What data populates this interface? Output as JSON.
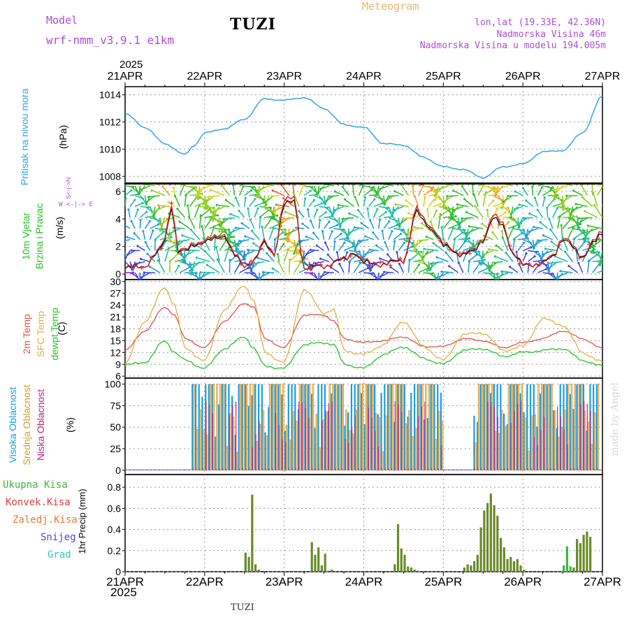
{
  "header": {
    "model_label": "Model",
    "model_name": "wrf-nmm_v3.9.1 e1km",
    "station": "TUZI",
    "meteogram": "Meteogram",
    "lonlat": "lon,lat (19.33E, 42.36N)",
    "altitude": "Nadmorska Visina 46m",
    "model_altitude": "Nadmorska Visina u modelu 194.005m",
    "watermark": "made by Angel",
    "footer_station": "TUZI"
  },
  "colors": {
    "pressure": "#2fa6e6",
    "t2m": "#e6504a",
    "sfc": "#e0b040",
    "dewpt": "#22c422",
    "high_cloud": "#1a9ce6",
    "mid_cloud": "#d89a30",
    "low_cloud": "#c81e78",
    "precip_total": "#3cb83c",
    "precip_conv": "#e63c3c",
    "precip_zaledj": "#f07830",
    "snow": "#4848e6",
    "hail": "#28c8c8",
    "title_purple": "#b04cd8"
  },
  "time_axis": {
    "year": "2025",
    "ticks": [
      "21APR",
      "22APR",
      "23APR",
      "24APR",
      "25APR",
      "26APR",
      "27APR"
    ]
  },
  "panel_labels": {
    "pressure": [
      "Pritisak na nivou mora",
      "(hPa)"
    ],
    "wind": [
      "10m Vjetar",
      "Brzina i Pravac",
      "(m/s)"
    ],
    "wind_compass": "W  <-|->  E",
    "wind_compass_ns": "S<-|->N",
    "temp": [
      "2m Temp",
      "SFC Temp",
      "dewpt Temp",
      "(C)"
    ],
    "cloud": [
      "Visoka Oblacnost",
      "Srednja Oblacnost",
      "Niska Oblacnost",
      "(%)"
    ],
    "precip_legend": [
      "Ukupna Kisa",
      "Konvek.Kisa",
      "Zaledj.Kisa",
      "Snijeg",
      "Grad"
    ],
    "precip_unit": "1hr Precip (mm)"
  },
  "chart_data": [
    {
      "type": "line",
      "name": "pressure",
      "ylabel": "(hPa)",
      "ylim": [
        1007.5,
        1014.6
      ],
      "yticks": [
        1008,
        1010,
        1012,
        1014
      ],
      "x_hours": [
        0,
        6,
        12,
        18,
        21,
        24,
        30,
        36,
        42,
        48,
        54,
        60,
        66,
        72,
        78,
        84,
        90,
        96,
        102,
        108,
        114,
        120,
        126,
        132,
        138,
        144
      ],
      "values": [
        1012.6,
        1011.6,
        1010.4,
        1009.6,
        1010.3,
        1011.2,
        1011.5,
        1012.2,
        1013.7,
        1013.6,
        1013.8,
        1013.0,
        1011.8,
        1011.6,
        1010.4,
        1010.3,
        1009.4,
        1008.7,
        1008.5,
        1007.9,
        1008.7,
        1008.9,
        1009.8,
        1009.9,
        1011.2,
        1013.9
      ],
      "grid": true
    },
    {
      "type": "line",
      "name": "wind_speed",
      "ylabel": "(m/s)",
      "ylim": [
        -0.4,
        6.6
      ],
      "yticks": [
        0,
        2,
        4,
        6
      ],
      "x_hours": [
        0,
        6,
        10,
        12,
        14,
        16,
        18,
        21,
        24,
        30,
        33,
        36,
        39,
        42,
        45,
        48,
        51,
        54,
        60,
        66,
        69,
        72,
        78,
        84,
        88,
        90,
        93,
        96,
        102,
        105,
        108,
        111,
        114,
        117,
        120,
        126,
        129,
        132,
        138,
        141,
        144
      ],
      "values": [
        0.4,
        0.6,
        1.5,
        2.5,
        5.0,
        1.6,
        1.6,
        2.2,
        2.3,
        2.8,
        1.3,
        0.6,
        1.0,
        2.2,
        1.5,
        5.0,
        5.3,
        0.4,
        0.6,
        1.0,
        1.6,
        0.8,
        0.7,
        1.0,
        4.5,
        3.8,
        3.2,
        2.0,
        1.4,
        1.6,
        2.5,
        4.0,
        3.5,
        1.5,
        0.6,
        0.8,
        1.2,
        2.6,
        1.2,
        2.3,
        2.8
      ],
      "grid": true
    },
    {
      "type": "line",
      "name": "temperature",
      "ylabel": "(C)",
      "ylim": [
        5.5,
        30.5
      ],
      "yticks": [
        6,
        9,
        12,
        15,
        18,
        21,
        24,
        27,
        30
      ],
      "x_hours": [
        0,
        6,
        12,
        15,
        18,
        24,
        30,
        36,
        39,
        42,
        48,
        54,
        60,
        63,
        66,
        72,
        78,
        84,
        90,
        96,
        102,
        108,
        114,
        120,
        126,
        132,
        138,
        144
      ],
      "series": [
        {
          "name": "2m Temp",
          "values": [
            12.5,
            17.5,
            23.5,
            21.5,
            15.5,
            13.2,
            20.0,
            24.5,
            23.5,
            15.5,
            13.2,
            21.5,
            21.5,
            20.0,
            15.5,
            14.5,
            15.0,
            16.0,
            13.5,
            13.5,
            15.5,
            15.0,
            13.2,
            14.5,
            15.5,
            17.5,
            15.5,
            13.0
          ]
        },
        {
          "name": "SFC Temp",
          "values": [
            9.0,
            20.0,
            28.5,
            24.0,
            13.0,
            10.0,
            23.0,
            29.0,
            25.0,
            12.0,
            9.5,
            28.0,
            22.0,
            23.0,
            12.5,
            11.5,
            14.0,
            20.0,
            13.5,
            10.0,
            16.5,
            17.0,
            12.5,
            13.5,
            20.5,
            19.0,
            12.0,
            9.5
          ]
        },
        {
          "name": "dewpt Temp",
          "values": [
            8.8,
            9.5,
            15.0,
            12.0,
            10.0,
            8.0,
            13.0,
            16.0,
            13.0,
            8.5,
            8.0,
            14.0,
            14.5,
            14.0,
            9.0,
            8.0,
            11.5,
            13.5,
            10.5,
            9.0,
            12.5,
            13.0,
            11.0,
            12.0,
            12.5,
            13.0,
            10.0,
            8.5
          ]
        }
      ],
      "grid": true
    },
    {
      "type": "bar",
      "name": "cloud_cover",
      "ylabel": "(%)",
      "ylim": [
        -5,
        107
      ],
      "yticks": [
        0,
        25,
        50,
        75,
        100
      ],
      "series": [
        "Visoka Oblacnost",
        "Srednja Oblacnost",
        "Niska Oblacnost"
      ],
      "clear_hours": [
        [
          0,
          20
        ],
        [
          96,
          105
        ],
        [
          143,
          144
        ]
      ],
      "grid": true
    },
    {
      "type": "bar",
      "name": "precip",
      "ylabel": "1hr Precip (mm)",
      "ylim": [
        0,
        0.92
      ],
      "yticks": [
        0,
        0.2,
        0.4,
        0.6,
        0.8
      ],
      "x_hours": [
        36,
        37,
        38,
        39,
        40,
        56,
        57,
        58,
        59,
        60,
        61,
        62,
        81,
        82,
        83,
        84,
        85,
        86,
        87,
        88,
        102,
        103,
        104,
        105,
        106,
        107,
        108,
        109,
        110,
        111,
        112,
        113,
        114,
        115,
        116,
        117,
        118,
        119,
        120,
        132,
        133,
        134,
        135,
        136,
        137,
        138,
        139,
        140
      ],
      "values": [
        0.18,
        0.14,
        0.73,
        0.07,
        0.02,
        0.28,
        0.16,
        0.23,
        0.06,
        0.17,
        0.01,
        0.02,
        0.07,
        0.45,
        0.22,
        0.16,
        0.05,
        0.04,
        0.02,
        0.01,
        0.04,
        0.07,
        0.06,
        0.1,
        0.16,
        0.42,
        0.58,
        0.65,
        0.74,
        0.63,
        0.53,
        0.32,
        0.23,
        0.12,
        0.14,
        0.1,
        0.12,
        0.06,
        0.02,
        0.06,
        0.24,
        0.05,
        0.04,
        0.31,
        0.27,
        0.35,
        0.38,
        0.33
      ],
      "grid": true
    }
  ]
}
